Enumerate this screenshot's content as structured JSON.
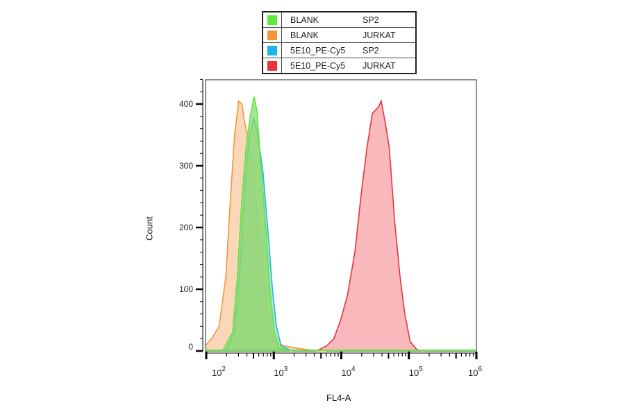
{
  "chart_data": {
    "type": "area",
    "title": "",
    "xlabel": "FL4-A",
    "ylabel": "Count",
    "xscale": "log",
    "xlim_log10": [
      2,
      6
    ],
    "ylim": [
      0,
      440
    ],
    "x_tick_labels": [
      {
        "base": "10",
        "exp": "2"
      },
      {
        "base": "10",
        "exp": "3"
      },
      {
        "base": "10",
        "exp": "4"
      },
      {
        "base": "10",
        "exp": "5"
      },
      {
        "base": "10",
        "exp": "6"
      }
    ],
    "y_ticks": [
      0,
      100,
      200,
      300,
      400
    ],
    "legend_placement": "top-center",
    "series": [
      {
        "name": "BLANK",
        "cell": "JURKAT",
        "color": "#f0973a",
        "fill": "#f8c9a0",
        "log10_x": [
          2.0,
          2.08,
          2.19,
          2.29,
          2.36,
          2.42,
          2.48,
          2.53,
          2.57,
          2.63,
          2.7,
          2.77,
          2.86,
          2.94,
          3.01,
          3.16,
          3.37,
          3.58,
          3.78
        ],
        "count": [
          10,
          20,
          40,
          120,
          250,
          350,
          405,
          400,
          370,
          340,
          290,
          200,
          100,
          40,
          15,
          8,
          4,
          1,
          0
        ]
      },
      {
        "name": "5E10_PE-Cy5",
        "cell": "SP2",
        "color": "#1ab8ea",
        "fill": "#9fd8c0",
        "log10_x": [
          2.29,
          2.42,
          2.49,
          2.57,
          2.63,
          2.7,
          2.75,
          2.84,
          2.91,
          2.98,
          3.04,
          3.11,
          3.27
        ],
        "count": [
          0,
          30,
          120,
          260,
          340,
          378,
          360,
          290,
          200,
          100,
          40,
          8,
          0
        ]
      },
      {
        "name": "BLANK",
        "cell": "SP2",
        "color": "#5ee83a",
        "fill": "#8fd86a",
        "log10_x": [
          2.24,
          2.39,
          2.46,
          2.53,
          2.59,
          2.65,
          2.71,
          2.75,
          2.81,
          2.88,
          2.94,
          3.01,
          3.08,
          3.27
        ],
        "count": [
          0,
          30,
          120,
          250,
          330,
          380,
          412,
          390,
          300,
          200,
          100,
          30,
          5,
          0
        ]
      },
      {
        "name": "5E10_PE-Cy5",
        "cell": "JURKAT",
        "color": "#e8343a",
        "fill": "#f7a0a4",
        "log10_x": [
          3.63,
          3.78,
          3.89,
          3.99,
          4.09,
          4.2,
          4.3,
          4.38,
          4.46,
          4.55,
          4.59,
          4.65,
          4.71,
          4.79,
          4.87,
          4.94,
          5.02,
          5.12,
          5.23
        ],
        "count": [
          0,
          8,
          20,
          50,
          90,
          160,
          260,
          330,
          385,
          395,
          405,
          370,
          330,
          210,
          120,
          60,
          15,
          2,
          0
        ]
      }
    ],
    "legend": [
      {
        "name": "BLANK",
        "cell": "SP2",
        "color": "#5ee83a"
      },
      {
        "name": "BLANK",
        "cell": "JURKAT",
        "color": "#f0973a"
      },
      {
        "name": "5E10_PE-Cy5",
        "cell": "SP2",
        "color": "#1ab8ea"
      },
      {
        "name": "5E10_PE-Cy5",
        "cell": "JURKAT",
        "color": "#e8343a"
      }
    ]
  }
}
